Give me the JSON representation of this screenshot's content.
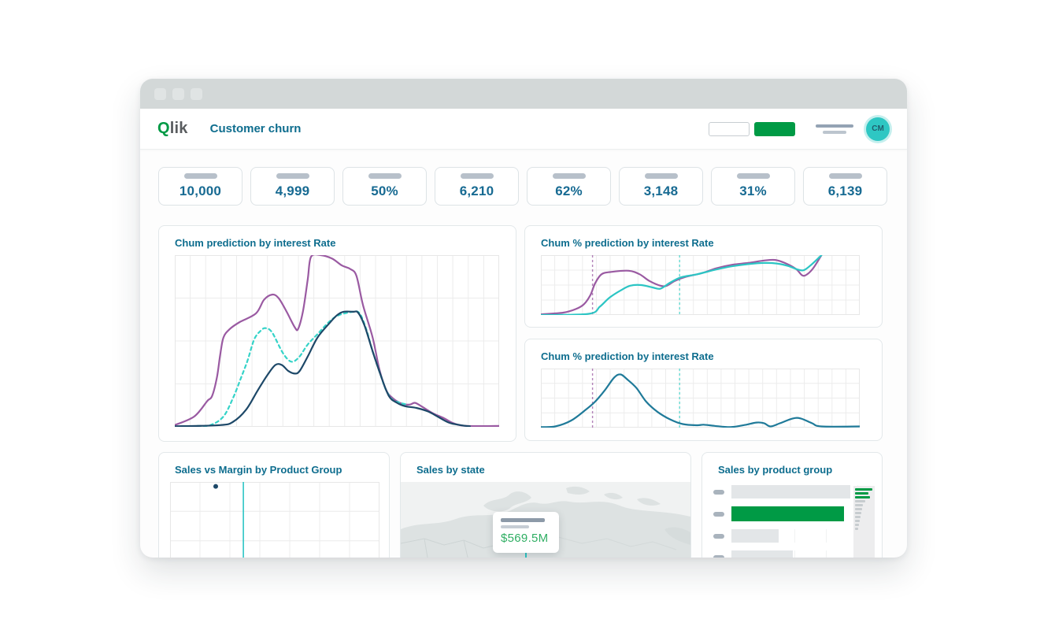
{
  "header": {
    "brand_q": "Q",
    "brand_rest": "lik",
    "title": "Customer churn",
    "avatar_initials": "CM"
  },
  "kpis": [
    "10,000",
    "4,999",
    "50%",
    "6,210",
    "62%",
    "3,148",
    "31%",
    "6,139"
  ],
  "colors": {
    "green": "#009a45",
    "teal": "#2cc5c4",
    "purple": "#9a5aa2",
    "navy": "#1d4868",
    "cyan": "#35d3c8",
    "steel": "#1f7a99",
    "gray_bar": "#e3e6e8",
    "grid": "#ececec",
    "title_text": "#0e6d8e",
    "kpi_text": "#176a92",
    "tooltip_value_text": "#2fae63"
  },
  "chart_data": [
    {
      "id": "churn-prediction",
      "type": "line",
      "title": "Chum prediction by interest Rate",
      "grid": {
        "cols": 21,
        "rows": 4
      },
      "xlim": [
        0,
        100
      ],
      "ylim": [
        0,
        100
      ],
      "legend": "none",
      "series": [
        {
          "name": "purple-line",
          "color": "purple",
          "dash": false,
          "points": [
            [
              0,
              1
            ],
            [
              6,
              6
            ],
            [
              10,
              15
            ],
            [
              11.5,
              18
            ],
            [
              13,
              29
            ],
            [
              14,
              42
            ],
            [
              15,
              52
            ],
            [
              17,
              57
            ],
            [
              20,
              61
            ],
            [
              25,
              66
            ],
            [
              27.5,
              74
            ],
            [
              30,
              77
            ],
            [
              32,
              75
            ],
            [
              34.5,
              67
            ],
            [
              37,
              58
            ],
            [
              38,
              57
            ],
            [
              39.5,
              67
            ],
            [
              41,
              86
            ],
            [
              42,
              99
            ],
            [
              45,
              100
            ],
            [
              48.5,
              98
            ],
            [
              51.5,
              94
            ],
            [
              54,
              92
            ],
            [
              56,
              88
            ],
            [
              58,
              71
            ],
            [
              61,
              52
            ],
            [
              63,
              34
            ],
            [
              65,
              22
            ],
            [
              67,
              17
            ],
            [
              70,
              13.5
            ],
            [
              72.5,
              13
            ],
            [
              74,
              14
            ],
            [
              76,
              12
            ],
            [
              79.5,
              8
            ],
            [
              83,
              5
            ],
            [
              86,
              2
            ],
            [
              90,
              0.5
            ],
            [
              100,
              0.5
            ]
          ]
        },
        {
          "name": "cyan-dashed-line",
          "color": "cyan",
          "dash": true,
          "points": [
            [
              7,
              0.5
            ],
            [
              11,
              1
            ],
            [
              15,
              6
            ],
            [
              18,
              17
            ],
            [
              20.5,
              29
            ],
            [
              22.5,
              39
            ],
            [
              24.5,
              51
            ],
            [
              26.5,
              56
            ],
            [
              28,
              57.5
            ],
            [
              30,
              55
            ],
            [
              33,
              44
            ],
            [
              35,
              39
            ],
            [
              36.5,
              38
            ],
            [
              38.5,
              41
            ],
            [
              41,
              48
            ],
            [
              44,
              54
            ],
            [
              47.5,
              61
            ],
            [
              50.5,
              65
            ],
            [
              55,
              67
            ],
            [
              57,
              66
            ],
            [
              59,
              57
            ],
            [
              61,
              44
            ],
            [
              63.5,
              30
            ],
            [
              65,
              22
            ],
            [
              67,
              16
            ],
            [
              69.5,
              14
            ],
            [
              71.5,
              13
            ]
          ]
        },
        {
          "name": "navy-line",
          "color": "navy",
          "dash": false,
          "points": [
            [
              0,
              0.3
            ],
            [
              14,
              1
            ],
            [
              18,
              3
            ],
            [
              22,
              10
            ],
            [
              25.5,
              21
            ],
            [
              28.5,
              30
            ],
            [
              31,
              36
            ],
            [
              33,
              36
            ],
            [
              35,
              32.5
            ],
            [
              37,
              31
            ],
            [
              38.5,
              32.5
            ],
            [
              41,
              41
            ],
            [
              44,
              52
            ],
            [
              47.5,
              60
            ],
            [
              50,
              65
            ],
            [
              52,
              67
            ],
            [
              55,
              67
            ],
            [
              56.5,
              66.5
            ],
            [
              58.5,
              59
            ],
            [
              61,
              44
            ],
            [
              63.5,
              30
            ],
            [
              66,
              18
            ],
            [
              68.5,
              14
            ],
            [
              71,
              12
            ],
            [
              74.5,
              11
            ],
            [
              78,
              9
            ],
            [
              81,
              6
            ],
            [
              84.5,
              2.5
            ],
            [
              88,
              1
            ],
            [
              91,
              0.3
            ]
          ]
        }
      ]
    },
    {
      "id": "churn-pct-top",
      "type": "line",
      "title": "Chum % prediction by interest Rate",
      "grid": {
        "cols": 23,
        "rows": 4
      },
      "xlim": [
        0,
        100
      ],
      "ylim": [
        0,
        100
      ],
      "markers": [
        {
          "x": 16.2,
          "color": "purple"
        },
        {
          "x": 43.5,
          "color": "cyan"
        }
      ],
      "series": [
        {
          "name": "purple-line",
          "color": "purple",
          "dash": false,
          "points": [
            [
              0,
              1
            ],
            [
              7,
              4
            ],
            [
              11,
              10
            ],
            [
              13.5,
              18
            ],
            [
              15.5,
              33
            ],
            [
              17,
              53
            ],
            [
              19,
              68
            ],
            [
              22,
              72
            ],
            [
              27.5,
              74
            ],
            [
              31,
              68
            ],
            [
              34,
              57
            ],
            [
              37.5,
              49
            ],
            [
              39.5,
              49
            ],
            [
              42,
              57
            ],
            [
              45.5,
              64
            ],
            [
              50.5,
              70
            ],
            [
              55,
              78
            ],
            [
              60,
              84
            ],
            [
              65,
              87
            ],
            [
              70,
              91
            ],
            [
              73.5,
              92
            ],
            [
              76.5,
              87
            ],
            [
              80,
              77
            ],
            [
              82,
              66
            ],
            [
              83.5,
              68
            ],
            [
              85.5,
              79
            ],
            [
              88,
              100
            ]
          ]
        },
        {
          "name": "teal-line",
          "color": "teal",
          "dash": false,
          "points": [
            [
              0,
              0
            ],
            [
              15,
              2
            ],
            [
              18.5,
              14
            ],
            [
              21.5,
              29
            ],
            [
              25,
              41
            ],
            [
              28,
              49
            ],
            [
              31.5,
              50
            ],
            [
              35,
              46
            ],
            [
              37.5,
              44
            ],
            [
              40.5,
              54
            ],
            [
              44,
              63
            ],
            [
              49,
              68
            ],
            [
              55,
              76
            ],
            [
              60,
              81.5
            ],
            [
              65,
              85
            ],
            [
              70,
              87
            ],
            [
              74,
              86
            ],
            [
              77.5,
              82
            ],
            [
              80.5,
              76
            ],
            [
              82.5,
              75
            ],
            [
              85,
              85
            ],
            [
              88,
              100
            ]
          ]
        }
      ]
    },
    {
      "id": "churn-pct-bottom",
      "type": "line",
      "title": "Chum % prediction by interest Rate",
      "grid": {
        "cols": 23,
        "rows": 4
      },
      "xlim": [
        0,
        100
      ],
      "ylim": [
        0,
        100
      ],
      "markers": [
        {
          "x": 16.2,
          "color": "purple"
        },
        {
          "x": 43.5,
          "color": "cyan"
        }
      ],
      "series": [
        {
          "name": "steel-line",
          "color": "steel",
          "dash": false,
          "points": [
            [
              0,
              1
            ],
            [
              4.5,
              2
            ],
            [
              9.5,
              12
            ],
            [
              14,
              30
            ],
            [
              17,
              44
            ],
            [
              20,
              63
            ],
            [
              23,
              85
            ],
            [
              25,
              90
            ],
            [
              27,
              82
            ],
            [
              30,
              67
            ],
            [
              33,
              44
            ],
            [
              36.5,
              27
            ],
            [
              40.5,
              14
            ],
            [
              44.5,
              6
            ],
            [
              49,
              4
            ],
            [
              51,
              5
            ],
            [
              54.5,
              3
            ],
            [
              59.5,
              1
            ],
            [
              64,
              4.5
            ],
            [
              67.5,
              8.5
            ],
            [
              70,
              7.5
            ],
            [
              72,
              2
            ],
            [
              75,
              7.5
            ],
            [
              79,
              15.5
            ],
            [
              81.5,
              15.5
            ],
            [
              85,
              7.5
            ],
            [
              88,
              2
            ],
            [
              100,
              2
            ]
          ]
        }
      ]
    },
    {
      "id": "sales-vs-margin",
      "type": "scatter",
      "title": "Sales vs Margin by Product Group",
      "grid": {
        "cols": 7,
        "rows": 3
      },
      "points": [
        {
          "x": 21.8,
          "y": 95
        }
      ],
      "vline_x": 35,
      "point_color": "navy",
      "vline_color": "teal"
    },
    {
      "id": "sales-by-state",
      "type": "map",
      "title": "Sales by state",
      "tooltip": {
        "value": "$569.5M"
      }
    },
    {
      "id": "sales-by-product-group",
      "type": "bar",
      "title": "Sales by product group",
      "bars": [
        {
          "value": 93,
          "color": "gray"
        },
        {
          "value": 88,
          "color": "green"
        },
        {
          "value": 37,
          "color": "gray"
        },
        {
          "value": 48,
          "color": "gray"
        }
      ],
      "minimap": {
        "values": [
          100,
          77,
          86,
          59,
          45,
          41,
          36,
          32,
          27,
          23,
          18
        ],
        "green_count": 3
      }
    }
  ]
}
